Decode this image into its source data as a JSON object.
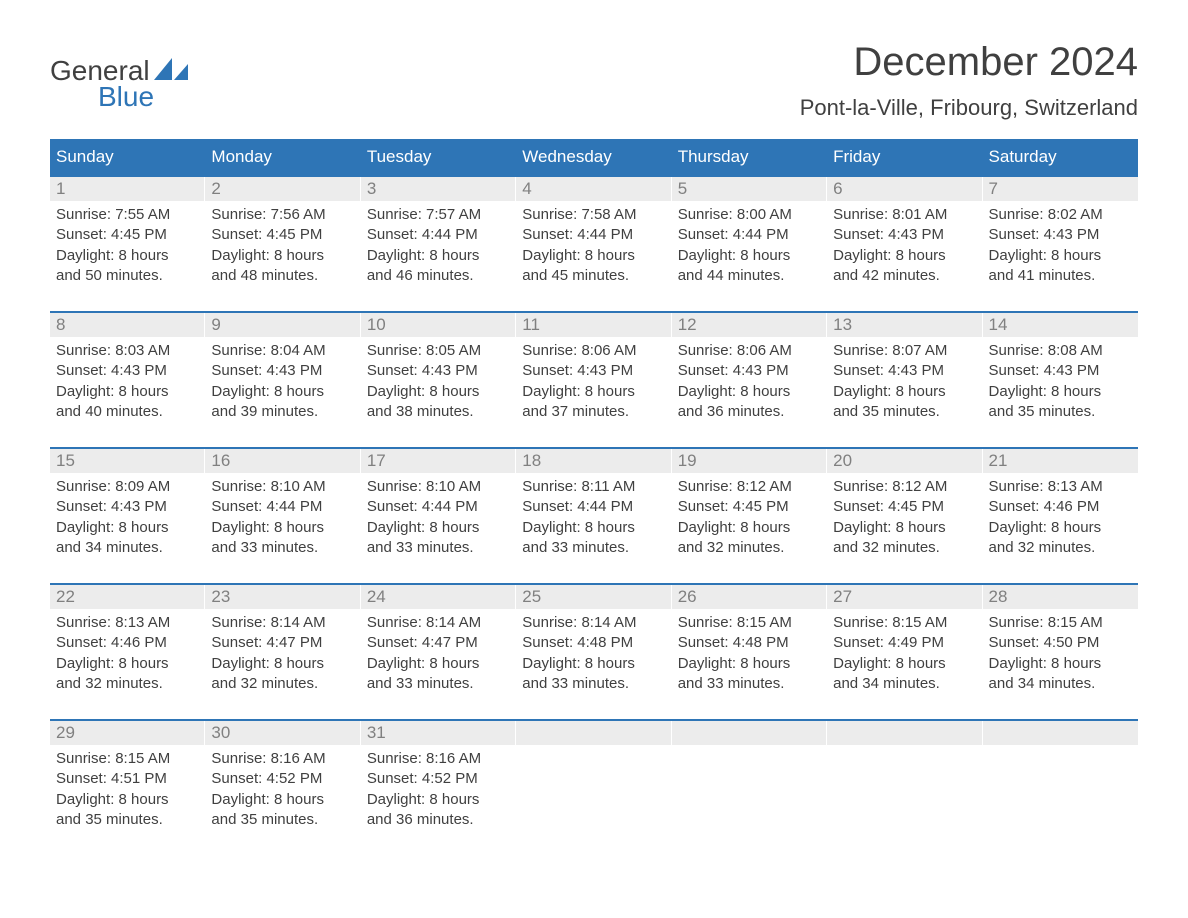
{
  "brand": {
    "text1": "General",
    "text2": "Blue",
    "sail_color": "#2e75b6"
  },
  "title": "December 2024",
  "location": "Pont-la-Ville, Fribourg, Switzerland",
  "colors": {
    "header_bg": "#2e75b6",
    "header_text": "#ffffff",
    "daynum_bg": "#ececec",
    "daynum_text": "#808080",
    "body_text": "#404040",
    "week_border": "#2e75b6",
    "page_bg": "#ffffff"
  },
  "typography": {
    "title_fontsize": 40,
    "location_fontsize": 22,
    "dow_fontsize": 17,
    "daynum_fontsize": 17,
    "body_fontsize": 15
  },
  "dow": [
    "Sunday",
    "Monday",
    "Tuesday",
    "Wednesday",
    "Thursday",
    "Friday",
    "Saturday"
  ],
  "labels": {
    "sunrise": "Sunrise:",
    "sunset": "Sunset:",
    "daylight": "Daylight:"
  },
  "weeks": [
    [
      {
        "n": "1",
        "sunrise": "7:55 AM",
        "sunset": "4:45 PM",
        "dl1": "8 hours",
        "dl2": "and 50 minutes."
      },
      {
        "n": "2",
        "sunrise": "7:56 AM",
        "sunset": "4:45 PM",
        "dl1": "8 hours",
        "dl2": "and 48 minutes."
      },
      {
        "n": "3",
        "sunrise": "7:57 AM",
        "sunset": "4:44 PM",
        "dl1": "8 hours",
        "dl2": "and 46 minutes."
      },
      {
        "n": "4",
        "sunrise": "7:58 AM",
        "sunset": "4:44 PM",
        "dl1": "8 hours",
        "dl2": "and 45 minutes."
      },
      {
        "n": "5",
        "sunrise": "8:00 AM",
        "sunset": "4:44 PM",
        "dl1": "8 hours",
        "dl2": "and 44 minutes."
      },
      {
        "n": "6",
        "sunrise": "8:01 AM",
        "sunset": "4:43 PM",
        "dl1": "8 hours",
        "dl2": "and 42 minutes."
      },
      {
        "n": "7",
        "sunrise": "8:02 AM",
        "sunset": "4:43 PM",
        "dl1": "8 hours",
        "dl2": "and 41 minutes."
      }
    ],
    [
      {
        "n": "8",
        "sunrise": "8:03 AM",
        "sunset": "4:43 PM",
        "dl1": "8 hours",
        "dl2": "and 40 minutes."
      },
      {
        "n": "9",
        "sunrise": "8:04 AM",
        "sunset": "4:43 PM",
        "dl1": "8 hours",
        "dl2": "and 39 minutes."
      },
      {
        "n": "10",
        "sunrise": "8:05 AM",
        "sunset": "4:43 PM",
        "dl1": "8 hours",
        "dl2": "and 38 minutes."
      },
      {
        "n": "11",
        "sunrise": "8:06 AM",
        "sunset": "4:43 PM",
        "dl1": "8 hours",
        "dl2": "and 37 minutes."
      },
      {
        "n": "12",
        "sunrise": "8:06 AM",
        "sunset": "4:43 PM",
        "dl1": "8 hours",
        "dl2": "and 36 minutes."
      },
      {
        "n": "13",
        "sunrise": "8:07 AM",
        "sunset": "4:43 PM",
        "dl1": "8 hours",
        "dl2": "and 35 minutes."
      },
      {
        "n": "14",
        "sunrise": "8:08 AM",
        "sunset": "4:43 PM",
        "dl1": "8 hours",
        "dl2": "and 35 minutes."
      }
    ],
    [
      {
        "n": "15",
        "sunrise": "8:09 AM",
        "sunset": "4:43 PM",
        "dl1": "8 hours",
        "dl2": "and 34 minutes."
      },
      {
        "n": "16",
        "sunrise": "8:10 AM",
        "sunset": "4:44 PM",
        "dl1": "8 hours",
        "dl2": "and 33 minutes."
      },
      {
        "n": "17",
        "sunrise": "8:10 AM",
        "sunset": "4:44 PM",
        "dl1": "8 hours",
        "dl2": "and 33 minutes."
      },
      {
        "n": "18",
        "sunrise": "8:11 AM",
        "sunset": "4:44 PM",
        "dl1": "8 hours",
        "dl2": "and 33 minutes."
      },
      {
        "n": "19",
        "sunrise": "8:12 AM",
        "sunset": "4:45 PM",
        "dl1": "8 hours",
        "dl2": "and 32 minutes."
      },
      {
        "n": "20",
        "sunrise": "8:12 AM",
        "sunset": "4:45 PM",
        "dl1": "8 hours",
        "dl2": "and 32 minutes."
      },
      {
        "n": "21",
        "sunrise": "8:13 AM",
        "sunset": "4:46 PM",
        "dl1": "8 hours",
        "dl2": "and 32 minutes."
      }
    ],
    [
      {
        "n": "22",
        "sunrise": "8:13 AM",
        "sunset": "4:46 PM",
        "dl1": "8 hours",
        "dl2": "and 32 minutes."
      },
      {
        "n": "23",
        "sunrise": "8:14 AM",
        "sunset": "4:47 PM",
        "dl1": "8 hours",
        "dl2": "and 32 minutes."
      },
      {
        "n": "24",
        "sunrise": "8:14 AM",
        "sunset": "4:47 PM",
        "dl1": "8 hours",
        "dl2": "and 33 minutes."
      },
      {
        "n": "25",
        "sunrise": "8:14 AM",
        "sunset": "4:48 PM",
        "dl1": "8 hours",
        "dl2": "and 33 minutes."
      },
      {
        "n": "26",
        "sunrise": "8:15 AM",
        "sunset": "4:48 PM",
        "dl1": "8 hours",
        "dl2": "and 33 minutes."
      },
      {
        "n": "27",
        "sunrise": "8:15 AM",
        "sunset": "4:49 PM",
        "dl1": "8 hours",
        "dl2": "and 34 minutes."
      },
      {
        "n": "28",
        "sunrise": "8:15 AM",
        "sunset": "4:50 PM",
        "dl1": "8 hours",
        "dl2": "and 34 minutes."
      }
    ],
    [
      {
        "n": "29",
        "sunrise": "8:15 AM",
        "sunset": "4:51 PM",
        "dl1": "8 hours",
        "dl2": "and 35 minutes."
      },
      {
        "n": "30",
        "sunrise": "8:16 AM",
        "sunset": "4:52 PM",
        "dl1": "8 hours",
        "dl2": "and 35 minutes."
      },
      {
        "n": "31",
        "sunrise": "8:16 AM",
        "sunset": "4:52 PM",
        "dl1": "8 hours",
        "dl2": "and 36 minutes."
      },
      {
        "empty": true
      },
      {
        "empty": true
      },
      {
        "empty": true
      },
      {
        "empty": true
      }
    ]
  ]
}
